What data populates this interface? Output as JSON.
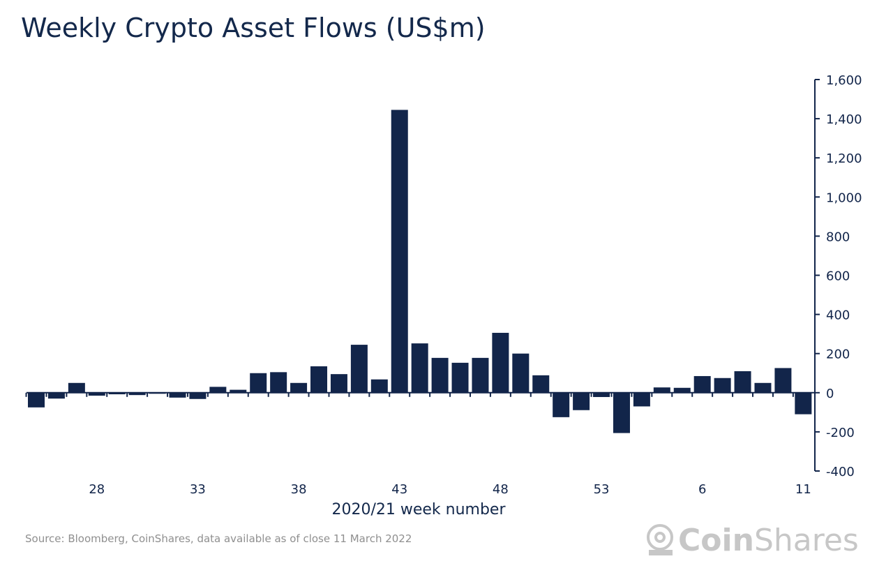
{
  "chart_data": {
    "type": "bar",
    "title": "Weekly Crypto Asset Flows (US$m)",
    "xlabel": "2020/21 week number",
    "ylabel": "",
    "categories": [
      "25",
      "26",
      "27",
      "28",
      "29",
      "30",
      "31",
      "32",
      "33",
      "34",
      "35",
      "36",
      "37",
      "38",
      "39",
      "40",
      "41",
      "42",
      "43",
      "44",
      "45",
      "46",
      "47",
      "48",
      "49",
      "50",
      "51",
      "52",
      "53",
      "2",
      "3",
      "4",
      "5",
      "6",
      "7",
      "8",
      "9",
      "10",
      "11"
    ],
    "values": [
      -75,
      -30,
      50,
      -15,
      -8,
      -12,
      -3,
      -25,
      -32,
      30,
      15,
      100,
      105,
      50,
      135,
      95,
      245,
      68,
      1445,
      252,
      178,
      153,
      178,
      306,
      200,
      89,
      -125,
      -89,
      -22,
      -206,
      -70,
      27,
      25,
      85,
      75,
      110,
      50,
      126,
      -110
    ],
    "x_tick_labels": [
      "28",
      "33",
      "38",
      "43",
      "48",
      "53",
      "6",
      "11"
    ],
    "y_tick_labels": [
      "1,600",
      "1,400",
      "1,200",
      "1,000",
      "800",
      "600",
      "400",
      "200",
      "0",
      "-200",
      "-400"
    ],
    "ylim": [
      -400,
      1600
    ],
    "y_axis_side": "right",
    "grid": false,
    "bar_color": "#12254a"
  },
  "source": "Source: Bloomberg, CoinShares, data available as of close 11 March 2022",
  "logo": {
    "text_bold": "Coin",
    "text_regular": "Shares",
    "color": "#c7c7c7"
  }
}
